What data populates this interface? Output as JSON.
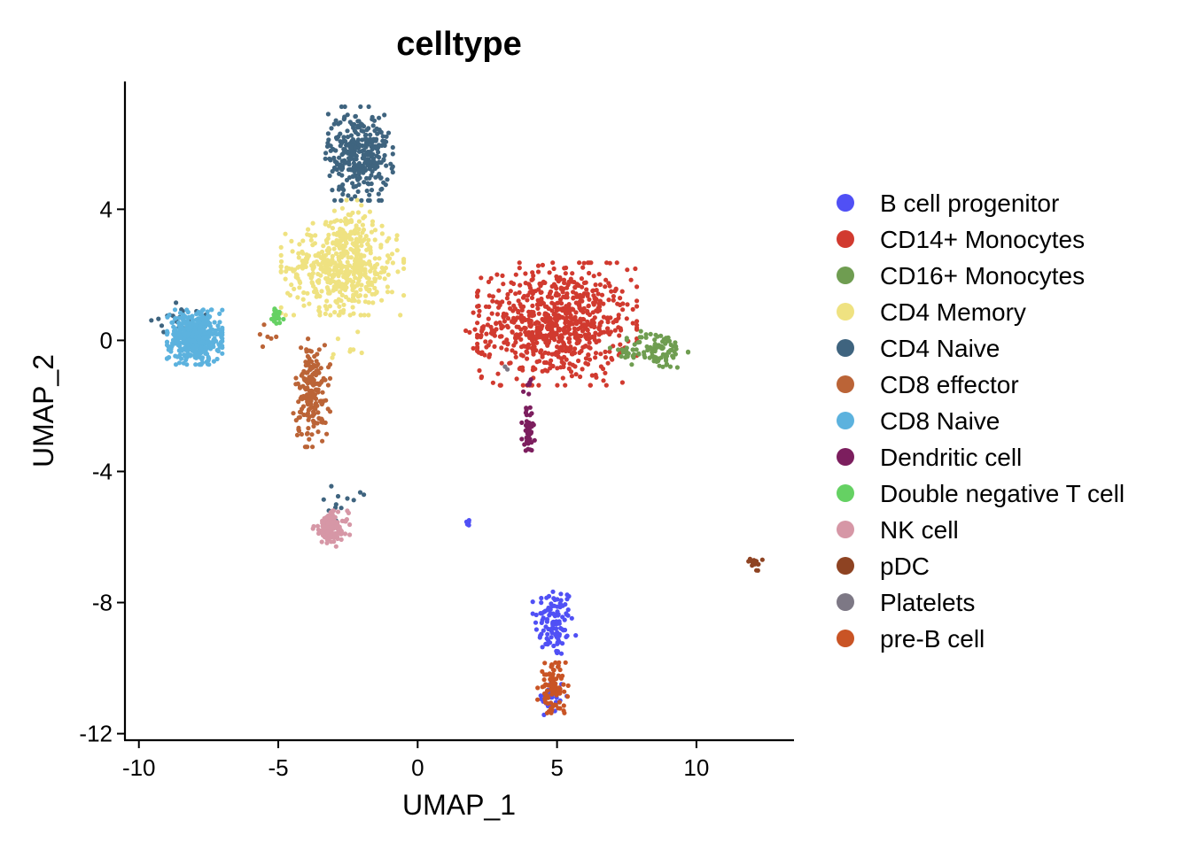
{
  "chart_data": {
    "type": "scatter",
    "title": "celltype",
    "xlabel": "UMAP_1",
    "ylabel": "UMAP_2",
    "xlim": [
      -10.5,
      13.5
    ],
    "ylim": [
      -12.2,
      7.9
    ],
    "xticks": [
      -10,
      -5,
      0,
      5,
      10
    ],
    "xtick_labels": [
      "-10",
      "-5",
      "0",
      "5",
      "10"
    ],
    "yticks": [
      -12,
      -8,
      -4,
      0,
      4
    ],
    "ytick_labels": [
      "-12",
      "-8",
      "-4",
      "0",
      "4"
    ],
    "grid": false,
    "legend_position": "right",
    "series": [
      {
        "name": "B cell progenitor",
        "color": "#5050f5",
        "clusters": [
          {
            "x": 4.9,
            "y": -8.6,
            "sx": 0.35,
            "sy": 0.55,
            "n": 110
          },
          {
            "x": 4.8,
            "y": -10.9,
            "sx": 0.25,
            "sy": 0.3,
            "n": 30
          },
          {
            "x": 1.8,
            "y": -5.55,
            "sx": 0.05,
            "sy": 0.05,
            "n": 5
          }
        ]
      },
      {
        "name": "CD14+ Monocytes",
        "color": "#d13a2f",
        "clusters": [
          {
            "x": 5.0,
            "y": 0.5,
            "sx": 1.3,
            "sy": 0.85,
            "n": 750
          },
          {
            "x": 2.5,
            "y": 0.4,
            "sx": 0.4,
            "sy": 0.6,
            "n": 25
          }
        ]
      },
      {
        "name": "CD16+ Monocytes",
        "color": "#6f9d51",
        "clusters": [
          {
            "x": 8.6,
            "y": -0.3,
            "sx": 0.5,
            "sy": 0.28,
            "n": 95
          },
          {
            "x": 7.4,
            "y": -0.4,
            "sx": 0.25,
            "sy": 0.15,
            "n": 12
          }
        ]
      },
      {
        "name": "CD4 Memory",
        "color": "#efe281",
        "clusters": [
          {
            "x": -2.7,
            "y": 2.2,
            "sx": 1.0,
            "sy": 0.65,
            "n": 480
          },
          {
            "x": -2.4,
            "y": 3.4,
            "sx": 0.4,
            "sy": 0.4,
            "n": 60
          },
          {
            "x": -2.6,
            "y": -0.4,
            "sx": 0.3,
            "sy": 0.3,
            "n": 8
          }
        ]
      },
      {
        "name": "CD4 Naive",
        "color": "#3f647f",
        "clusters": [
          {
            "x": -2.1,
            "y": 5.7,
            "sx": 0.55,
            "sy": 0.65,
            "n": 330
          },
          {
            "x": -8.7,
            "y": 0.7,
            "sx": 0.5,
            "sy": 0.25,
            "n": 20
          },
          {
            "x": -2.7,
            "y": -5.0,
            "sx": 0.35,
            "sy": 0.25,
            "n": 12
          }
        ]
      },
      {
        "name": "CD8 effector",
        "color": "#bb6437",
        "clusters": [
          {
            "x": -3.8,
            "y": -1.6,
            "sx": 0.3,
            "sy": 0.75,
            "n": 180
          },
          {
            "x": -5.5,
            "y": 0.2,
            "sx": 0.3,
            "sy": 0.25,
            "n": 6
          }
        ]
      },
      {
        "name": "CD8 Naive",
        "color": "#5cb2de",
        "clusters": [
          {
            "x": -8.0,
            "y": 0.1,
            "sx": 0.45,
            "sy": 0.38,
            "n": 470
          }
        ]
      },
      {
        "name": "Dendritic cell",
        "color": "#7c1e5e",
        "clusters": [
          {
            "x": 4.0,
            "y": -2.75,
            "sx": 0.12,
            "sy": 0.3,
            "n": 40
          },
          {
            "x": 4.0,
            "y": -1.5,
            "sx": 0.1,
            "sy": 0.3,
            "n": 8
          }
        ]
      },
      {
        "name": "Double negative T cell",
        "color": "#65d163",
        "clusters": [
          {
            "x": -5.1,
            "y": 0.75,
            "sx": 0.13,
            "sy": 0.18,
            "n": 28
          }
        ]
      },
      {
        "name": "NK cell",
        "color": "#d697a6",
        "clusters": [
          {
            "x": -3.1,
            "y": -5.75,
            "sx": 0.3,
            "sy": 0.25,
            "n": 120
          }
        ]
      },
      {
        "name": "pDC",
        "color": "#8e4322",
        "clusters": [
          {
            "x": 12.1,
            "y": -6.8,
            "sx": 0.12,
            "sy": 0.1,
            "n": 14
          }
        ]
      },
      {
        "name": "Platelets",
        "color": "#7d7885",
        "clusters": [
          {
            "x": 3.2,
            "y": -0.8,
            "sx": 0.05,
            "sy": 0.05,
            "n": 2
          }
        ]
      },
      {
        "name": "pre-B cell",
        "color": "#c95425",
        "clusters": [
          {
            "x": 4.85,
            "y": -10.6,
            "sx": 0.25,
            "sy": 0.35,
            "n": 90
          }
        ]
      }
    ]
  }
}
